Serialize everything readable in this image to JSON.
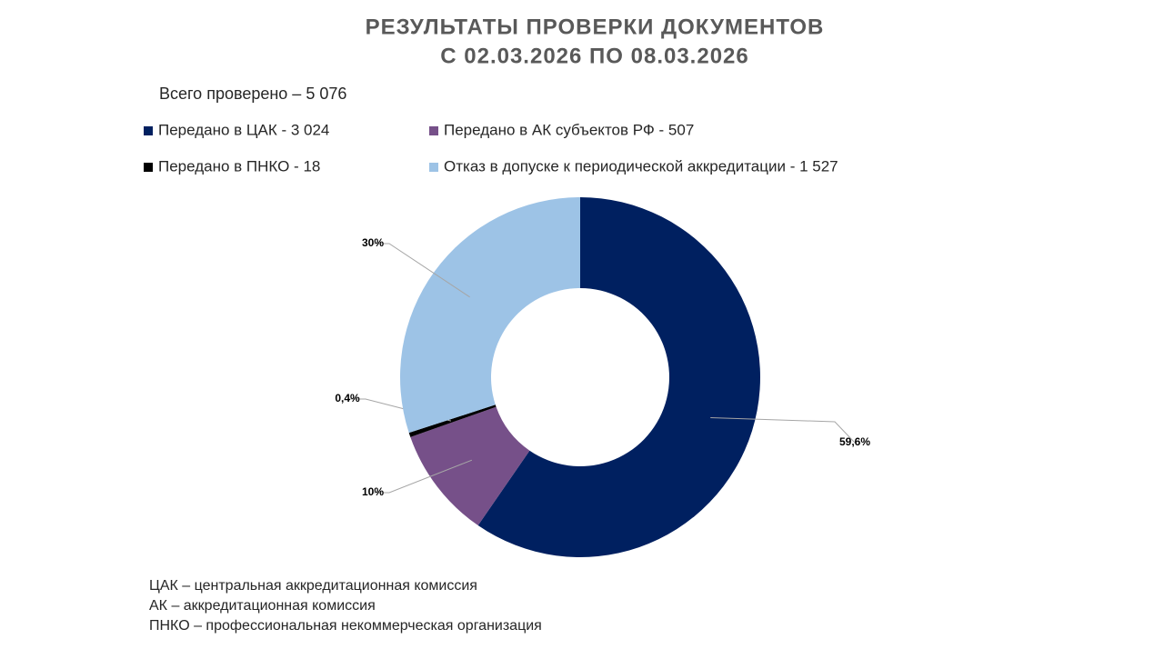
{
  "chart_data": {
    "type": "donut",
    "title": "РЕЗУЛЬТАТЫ ПРОВЕРКИ ДОКУМЕНТОВ",
    "subtitle": "С 02.03.2026  ПО 08.03.2026",
    "total_label": "Всего проверено – 5 076",
    "categories": [
      "Передано в ЦАК - 3 024",
      "Передано в АК субъектов РФ - 507",
      "Передано в ПНКО - 18",
      "Отказ в допуске к периодической аккредитации - 1 527"
    ],
    "values": [
      59.6,
      10,
      0.4,
      30
    ],
    "value_labels": [
      "59,6%",
      "10%",
      "0,4%",
      "30%"
    ],
    "colors": [
      "#002060",
      "#765089",
      "#000000",
      "#9DC3E6"
    ],
    "notes": [
      "ЦАК – центральная аккредитационная комиссия",
      "АК – аккредитационная комиссия",
      "ПНКО – профессиональная некоммерческая организация"
    ]
  }
}
